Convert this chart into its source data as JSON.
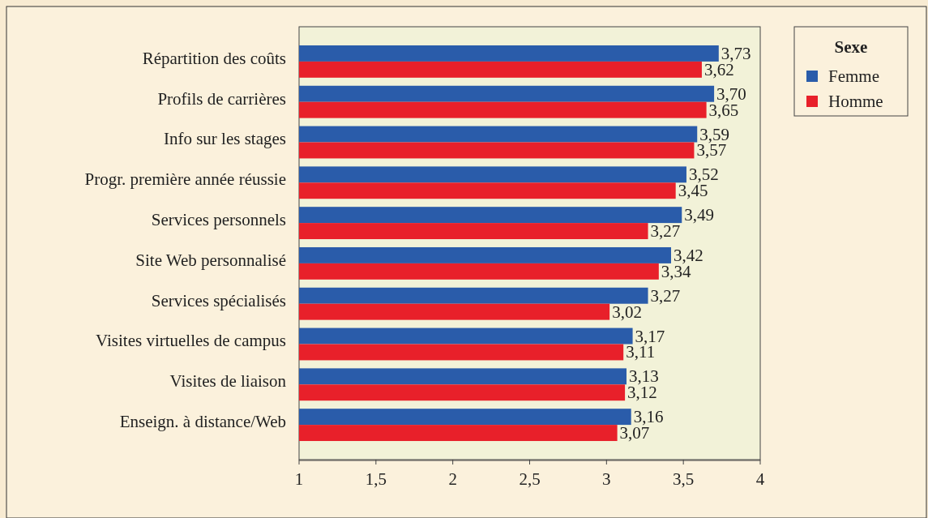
{
  "chart_data": {
    "type": "bar",
    "orientation": "horizontal",
    "categories": [
      "Répartition des coûts",
      "Profils de carrières",
      "Info sur les stages",
      "Progr. première année réussie",
      "Services personnels",
      "Site Web personnalisé",
      "Services spécialisés",
      "Visites virtuelles de campus",
      "Visites de liaison",
      "Enseign. à distance/Web"
    ],
    "series": [
      {
        "name": "Femme",
        "color": "#2a5caa",
        "values": [
          3.73,
          3.7,
          3.59,
          3.52,
          3.49,
          3.42,
          3.27,
          3.17,
          3.13,
          3.16
        ],
        "value_labels": [
          "3,73",
          "3,70",
          "3,59",
          "3,52",
          "3,49",
          "3,42",
          "3,27",
          "3,17",
          "3,13",
          "3,16"
        ]
      },
      {
        "name": "Homme",
        "color": "#e8202a",
        "values": [
          3.62,
          3.65,
          3.57,
          3.45,
          3.27,
          3.34,
          3.02,
          3.11,
          3.12,
          3.07
        ],
        "value_labels": [
          "3,62",
          "3,65",
          "3,57",
          "3,45",
          "3,27",
          "3,34",
          "3,02",
          "3,11",
          "3,12",
          "3,07"
        ]
      }
    ],
    "xlim": [
      1,
      4
    ],
    "xticks": [
      1,
      {
        "value": 1.5,
        "label": "1,5"
      },
      2,
      {
        "value": 2.5,
        "label": "2,5"
      },
      3,
      {
        "value": 3.5,
        "label": "3,5"
      },
      4
    ],
    "legend_title": "Sexe",
    "legend": "top right",
    "grid": false
  }
}
